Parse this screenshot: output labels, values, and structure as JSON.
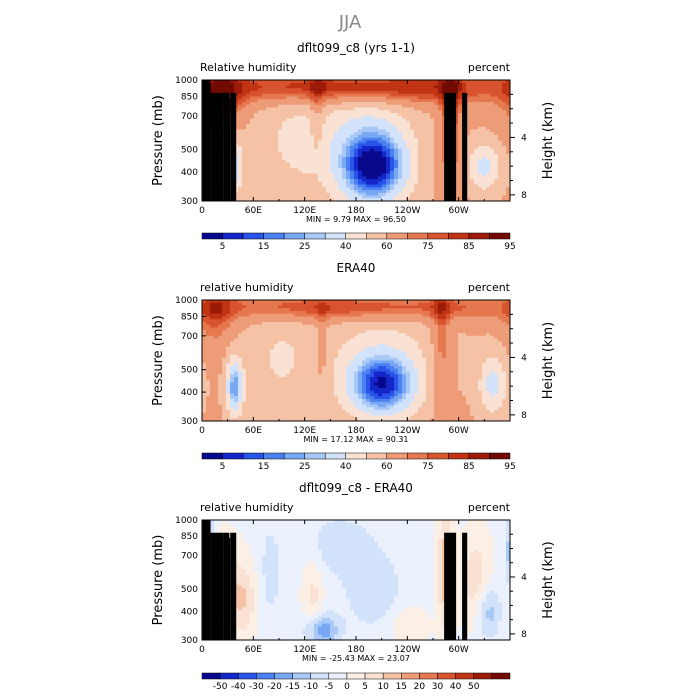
{
  "figure": {
    "title": "JJA"
  },
  "colors": {
    "rh": [
      "#08088c",
      "#1426c8",
      "#2855e8",
      "#4a80f0",
      "#78a8f4",
      "#a8c8f8",
      "#d2e2fb",
      "#f9e2d4",
      "#f5c2a6",
      "#ee9c78",
      "#e67850",
      "#d8542e",
      "#c03414",
      "#9c1a08",
      "#720a02"
    ],
    "diff": [
      "#08088c",
      "#1426c8",
      "#2855e8",
      "#4a80f0",
      "#78a8f4",
      "#a8c8f8",
      "#d2e2fb",
      "#eaf0fc",
      "#fcefe6",
      "#f9e2d4",
      "#f5c2a6",
      "#ee9c78",
      "#e67850",
      "#d8542e",
      "#c03414",
      "#9c1a08",
      "#720a02"
    ]
  },
  "chart_data": [
    {
      "type": "heatmap",
      "title": "dflt099_c8 (yrs 1-1)",
      "left_label": "Relative humidity",
      "right_label": "percent",
      "ylabel": "Pressure (mb)",
      "ylabel_right": "Height (km)",
      "x_ticks": [
        "0",
        "60E",
        "120E",
        "180",
        "120W",
        "60W"
      ],
      "x_tick_lon": [
        0,
        60,
        120,
        180,
        240,
        300
      ],
      "xlim": [
        0,
        360
      ],
      "y_ticks": [
        "300",
        "400",
        "500",
        "700",
        "850",
        "1000"
      ],
      "y_tick_p": [
        300,
        400,
        500,
        700,
        850,
        1000
      ],
      "ylim": [
        1000,
        300
      ],
      "yscale": "log",
      "y_right_ticks": [
        "8",
        "4"
      ],
      "y_right_km": [
        8,
        4
      ],
      "min_label": "MIN =",
      "min_value": "9.79",
      "max_label": "MAX =",
      "max_value": "96.50",
      "colorbar_labels": [
        "5",
        "15",
        "25",
        "40",
        "60",
        "75",
        "85",
        "95"
      ],
      "colorbar_levels": [
        5,
        10,
        15,
        20,
        25,
        30,
        40,
        50,
        60,
        70,
        75,
        80,
        85,
        90,
        95
      ],
      "palette": "rh",
      "background": 62,
      "has_topography": true,
      "features": [
        {
          "lon": 200,
          "p": 420,
          "sx": 28,
          "sp": 0.26,
          "amp": -55
        },
        {
          "lon": 190,
          "p": 650,
          "sx": 45,
          "sp": 0.5,
          "amp": -15
        },
        {
          "lon": 35,
          "p": 420,
          "sx": 9,
          "sp": 0.2,
          "amp": -30
        },
        {
          "lon": 330,
          "p": 420,
          "sx": 14,
          "sp": 0.18,
          "amp": -25
        },
        {
          "lon": 105,
          "p": 550,
          "sx": 35,
          "sp": 0.45,
          "amp": -12
        },
        {
          "lon": 180,
          "p": 930,
          "sx": 120,
          "sp": 0.12,
          "amp": 32
        },
        {
          "lon": 20,
          "p": 900,
          "sx": 20,
          "sp": 0.28,
          "amp": 20
        },
        {
          "lon": 290,
          "p": 650,
          "sx": 8,
          "sp": 0.5,
          "amp": 20
        },
        {
          "lon": 135,
          "p": 750,
          "sx": 6,
          "sp": 0.35,
          "amp": 10
        }
      ]
    },
    {
      "type": "heatmap",
      "title": "ERA40",
      "left_label": "relative humidity",
      "right_label": "percent",
      "ylabel": "Pressure (mb)",
      "ylabel_right": "Height (km)",
      "x_ticks": [
        "0",
        "60E",
        "120E",
        "180",
        "120W",
        "60W"
      ],
      "x_tick_lon": [
        0,
        60,
        120,
        180,
        240,
        300
      ],
      "xlim": [
        0,
        360
      ],
      "y_ticks": [
        "300",
        "400",
        "500",
        "700",
        "850",
        "1000"
      ],
      "y_tick_p": [
        300,
        400,
        500,
        700,
        850,
        1000
      ],
      "ylim": [
        1000,
        300
      ],
      "yscale": "log",
      "y_right_ticks": [
        "8",
        "4"
      ],
      "y_right_km": [
        8,
        4
      ],
      "min_label": "MIN =",
      "min_value": "17.12",
      "max_label": "MAX =",
      "max_value": "90.31",
      "colorbar_labels": [
        "5",
        "15",
        "25",
        "40",
        "60",
        "75",
        "85",
        "95"
      ],
      "colorbar_levels": [
        5,
        10,
        15,
        20,
        25,
        30,
        40,
        50,
        60,
        70,
        75,
        80,
        85,
        90,
        95
      ],
      "palette": "rh",
      "background": 62,
      "has_topography": false,
      "features": [
        {
          "lon": 210,
          "p": 430,
          "sx": 28,
          "sp": 0.22,
          "amp": -50
        },
        {
          "lon": 210,
          "p": 650,
          "sx": 55,
          "sp": 0.5,
          "amp": -12
        },
        {
          "lon": 38,
          "p": 420,
          "sx": 7,
          "sp": 0.2,
          "amp": -40
        },
        {
          "lon": 340,
          "p": 430,
          "sx": 12,
          "sp": 0.22,
          "amp": -25
        },
        {
          "lon": 90,
          "p": 550,
          "sx": 30,
          "sp": 0.4,
          "amp": -12
        },
        {
          "lon": 180,
          "p": 930,
          "sx": 130,
          "sp": 0.1,
          "amp": 24
        },
        {
          "lon": 15,
          "p": 900,
          "sx": 15,
          "sp": 0.25,
          "amp": 15
        },
        {
          "lon": 140,
          "p": 600,
          "sx": 5,
          "sp": 0.3,
          "amp": 10
        },
        {
          "lon": 280,
          "p": 650,
          "sx": 8,
          "sp": 0.5,
          "amp": 15
        }
      ]
    },
    {
      "type": "heatmap",
      "title": "dflt099_c8 - ERA40",
      "left_label": "relative humidity",
      "right_label": "percent",
      "ylabel": "Pressure (mb)",
      "ylabel_right": "Height (km)",
      "x_ticks": [
        "0",
        "60E",
        "120E",
        "180",
        "120W",
        "60W"
      ],
      "x_tick_lon": [
        0,
        60,
        120,
        180,
        240,
        300
      ],
      "xlim": [
        0,
        360
      ],
      "y_ticks": [
        "300",
        "400",
        "500",
        "700",
        "850",
        "1000"
      ],
      "y_tick_p": [
        300,
        400,
        500,
        700,
        850,
        1000
      ],
      "ylim": [
        1000,
        300
      ],
      "yscale": "log",
      "y_right_ticks": [
        "8",
        "4"
      ],
      "y_right_km": [
        8,
        4
      ],
      "min_label": "MIN =",
      "min_value": "-25.43",
      "max_label": "MAX =",
      "max_value": "23.07",
      "colorbar_labels": [
        "-50",
        "-40",
        "-30",
        "-20",
        "-15",
        "-10",
        "-5",
        "0",
        "5",
        "10",
        "15",
        "20",
        "30",
        "40",
        "50"
      ],
      "colorbar_levels": [
        -50,
        -40,
        -30,
        -20,
        -15,
        -10,
        -5,
        0,
        5,
        10,
        15,
        20,
        30,
        40,
        50
      ],
      "palette": "diff",
      "background": -1,
      "has_topography": true,
      "features": [
        {
          "lon": 5,
          "p": 720,
          "sx": 6,
          "sp": 0.25,
          "amp": -22
        },
        {
          "lon": 25,
          "p": 500,
          "sx": 12,
          "sp": 0.3,
          "amp": 14
        },
        {
          "lon": 50,
          "p": 450,
          "sx": 10,
          "sp": 0.25,
          "amp": 10
        },
        {
          "lon": 80,
          "p": 600,
          "sx": 10,
          "sp": 0.4,
          "amp": -6
        },
        {
          "lon": 130,
          "p": 450,
          "sx": 8,
          "sp": 0.3,
          "amp": 8
        },
        {
          "lon": 140,
          "p": 330,
          "sx": 14,
          "sp": 0.12,
          "amp": -18
        },
        {
          "lon": 200,
          "p": 500,
          "sx": 25,
          "sp": 0.3,
          "amp": -8
        },
        {
          "lon": 160,
          "p": 780,
          "sx": 25,
          "sp": 0.2,
          "amp": -8
        },
        {
          "lon": 285,
          "p": 600,
          "sx": 6,
          "sp": 0.4,
          "amp": 16
        },
        {
          "lon": 320,
          "p": 550,
          "sx": 12,
          "sp": 0.3,
          "amp": 10
        },
        {
          "lon": 335,
          "p": 400,
          "sx": 10,
          "sp": 0.2,
          "amp": -12
        },
        {
          "lon": 240,
          "p": 350,
          "sx": 15,
          "sp": 0.12,
          "amp": 7
        }
      ]
    }
  ],
  "topography": [
    {
      "lon0": 0,
      "lon1": 10,
      "p": 1000
    },
    {
      "lon0": 10,
      "lon1": 25,
      "p": 880
    },
    {
      "lon0": 25,
      "lon1": 32,
      "p": 880
    },
    {
      "lon0": 28,
      "lon1": 33,
      "p": 835
    },
    {
      "lon0": 33,
      "lon1": 40,
      "p": 880
    },
    {
      "lon0": 283,
      "lon1": 297,
      "p": 880
    },
    {
      "lon0": 304,
      "lon1": 310,
      "p": 880
    }
  ]
}
